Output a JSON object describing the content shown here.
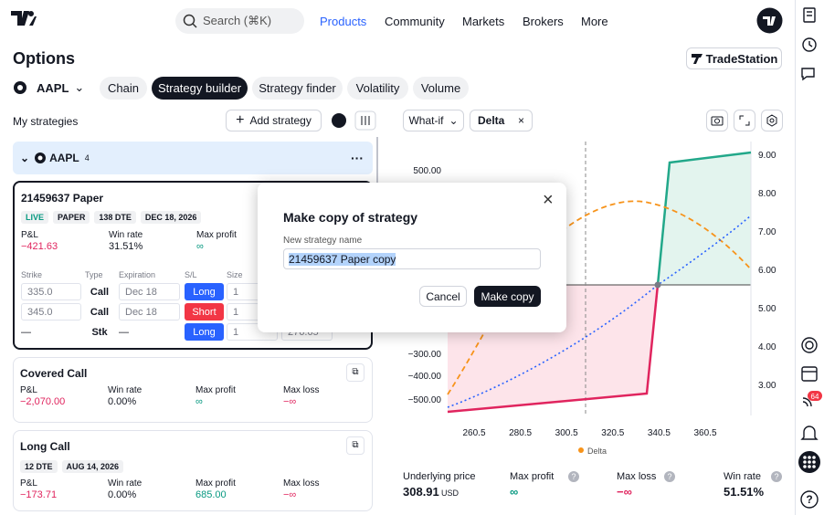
{
  "nav": {
    "search": "Search (⌘K)",
    "links": [
      "Products",
      "Community",
      "Markets",
      "Brokers",
      "More"
    ]
  },
  "header": {
    "title": "Options",
    "broker": "TradeStation"
  },
  "symbol": "AAPL",
  "tabs": [
    "Chain",
    "Strategy builder",
    "Strategy finder",
    "Volatility",
    "Volume"
  ],
  "strategies": {
    "title": "My strategies",
    "add": "Add strategy",
    "group": {
      "symbol": "AAPL",
      "count": "4"
    },
    "cards": [
      {
        "name": "21459637 Paper",
        "badges": [
          "LIVE",
          "PAPER",
          "138 DTE",
          "DEC 18, 2026"
        ],
        "metrics": [
          {
            "label": "P&L",
            "value": "−421.63",
            "color": "#e0245e"
          },
          {
            "label": "Win rate",
            "value": "31.51%",
            "color": "#131722"
          },
          {
            "label": "Max profit",
            "value": "∞",
            "color": "#089981"
          }
        ],
        "columns": [
          "Strike",
          "Type",
          "Expiration",
          "S/L",
          "Size"
        ],
        "legs": [
          [
            "335.0",
            "Call",
            "Dec 18",
            "Long",
            "1"
          ],
          [
            "345.0",
            "Call",
            "Dec 18",
            "Short",
            "1"
          ],
          [
            "—",
            "Stk",
            "—",
            "Long",
            "1",
            "276.65"
          ]
        ]
      },
      {
        "name": "Covered Call",
        "badges": [],
        "metrics": [
          {
            "label": "P&L",
            "value": "−2,070.00",
            "color": "#e0245e"
          },
          {
            "label": "Win rate",
            "value": "0.00%",
            "color": "#131722"
          },
          {
            "label": "Max profit",
            "value": "∞",
            "color": "#089981"
          },
          {
            "label": "Max loss",
            "value": "−∞",
            "color": "#e0245e"
          }
        ]
      },
      {
        "name": "Long Call",
        "badges": [
          "12 DTE",
          "AUG 14, 2026"
        ],
        "metrics": [
          {
            "label": "P&L",
            "value": "−173.71",
            "color": "#e0245e"
          },
          {
            "label": "Win rate",
            "value": "0.00%",
            "color": "#131722"
          },
          {
            "label": "Max profit",
            "value": "685.00",
            "color": "#089981"
          },
          {
            "label": "Max loss",
            "value": "−∞",
            "color": "#e0245e"
          }
        ]
      }
    ]
  },
  "toolbar": {
    "mode": "What-if",
    "chip": "Delta"
  },
  "chart": {
    "left_ticks": [
      "500.00",
      "−300.00",
      "−400.00",
      "−500.00"
    ],
    "right_ticks": [
      "9.00",
      "8.00",
      "7.00",
      "6.00",
      "5.00",
      "4.00",
      "3.00"
    ],
    "x_ticks": [
      "260.5",
      "280.5",
      "300.5",
      "320.5",
      "340.5",
      "360.5"
    ],
    "legend": "Delta"
  },
  "stats": [
    {
      "label": "Underlying price",
      "value": "308.91",
      "unit": "USD",
      "color": "#131722"
    },
    {
      "label": "Max profit",
      "value": "∞",
      "color": "#089981"
    },
    {
      "label": "Max loss",
      "value": "−∞",
      "color": "#e0245e"
    },
    {
      "label": "Win rate",
      "value": "51.51%",
      "color": "#131722"
    }
  ],
  "modal": {
    "title": "Make copy of strategy",
    "field_label": "New strategy name",
    "field_value": "21459637 Paper copy",
    "cancel": "Cancel",
    "confirm": "Make copy"
  },
  "sidebar": {
    "badge": "64"
  }
}
